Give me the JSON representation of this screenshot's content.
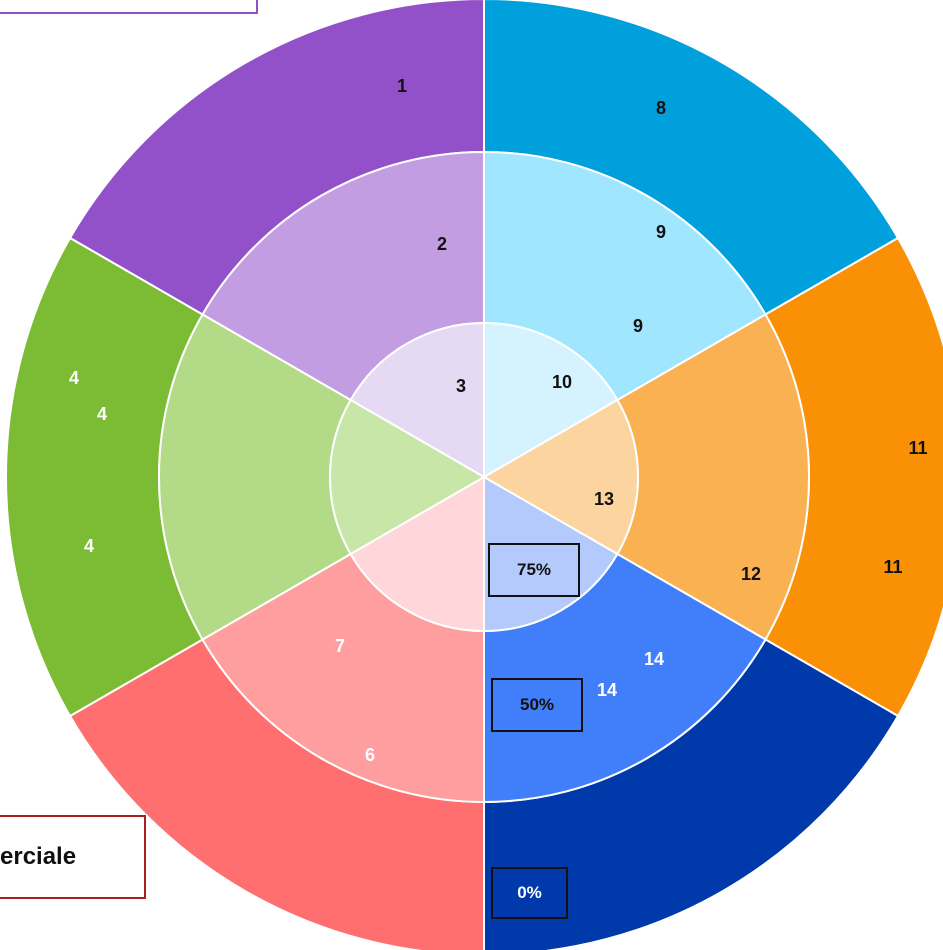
{
  "colors": {
    "sectors": [
      {
        "outer": "#9351c9",
        "middle": "#c39de1",
        "inner": "#e6d9f3"
      },
      {
        "outer": "#00a0dc",
        "middle": "#a0e6ff",
        "inner": "#d5f3ff"
      },
      {
        "outer": "#f99005",
        "middle": "#fab152",
        "inner": "#fcd4a0"
      },
      {
        "outer": "#0039aa",
        "middle": "#407ff9",
        "inner": "#b4cafd"
      },
      {
        "outer": "#ff6f6f",
        "middle": "#ff9e9e",
        "inner": "#ffd6d9"
      },
      {
        "outer": "#7cbc35",
        "middle": "#b3da86",
        "inner": "#c8e6a8"
      }
    ],
    "purple_box_border": "#9351c9",
    "commercial_box_border": "#aa1f1f"
  },
  "labels": {
    "l1": "1",
    "l2": "2",
    "l3": "3",
    "l4a": "4",
    "l4b": "4",
    "l4c": "4",
    "l6": "6",
    "l7": "7",
    "l8": "8",
    "l9a": "9",
    "l9b": "9",
    "l10": "10",
    "l11a": "11",
    "l11b": "11",
    "l12": "12",
    "l13": "13",
    "l14a": "14",
    "l14b": "14"
  },
  "scale": {
    "pct_75": "75%",
    "pct_50": "50%",
    "pct_0": "0%"
  },
  "commercial_box": {
    "text": "erciale"
  }
}
